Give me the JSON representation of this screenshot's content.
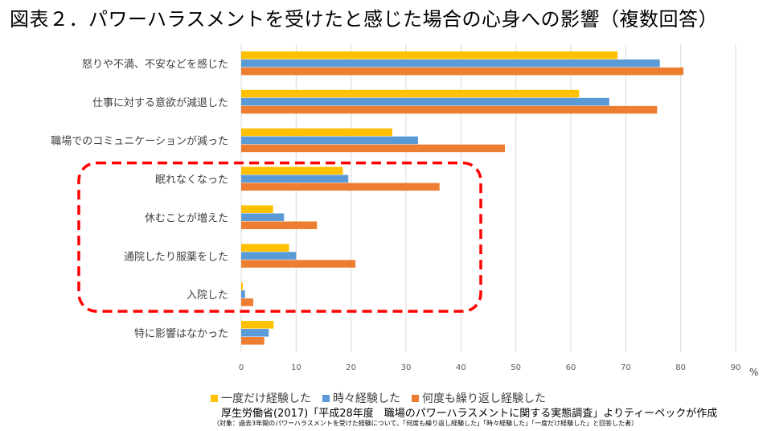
{
  "title": "図表２．パワーハラスメントを受けたと感じた場合の心身への影響（複数回答）",
  "unit": "%",
  "source": "厚生労働省(2017)「平成28年度　職場のパワーハラスメントに関する実態調査」よりティーペックが作成",
  "note": "（対象：過去3年間のパワーハラスメントを受けた経験について、「何度も繰り返し経験した」「時々経験した」「一度だけ経験した」と回答した者）",
  "chart_data": {
    "type": "bar",
    "orientation": "horizontal",
    "categories": [
      "怒りや不満、不安などを感じた",
      "仕事に対する意欲が減退した",
      "職場でのコミュニケーションが減った",
      "眠れなくなった",
      "休むことが増えた",
      "通院したり服薬をした",
      "入院した",
      "特に影響はなかった"
    ],
    "series": [
      {
        "name": "一度だけ経験した",
        "color": "#FFC000",
        "values": [
          68.5,
          61.5,
          27.5,
          18.5,
          5.8,
          8.7,
          0.3,
          5.9
        ]
      },
      {
        "name": "時々経験した",
        "color": "#5B9BD5",
        "values": [
          76.2,
          67.0,
          32.2,
          19.5,
          7.8,
          10.0,
          0.7,
          5.0
        ]
      },
      {
        "name": "何度も繰り返し経験した",
        "color": "#ED7D31",
        "values": [
          80.5,
          75.7,
          48.0,
          36.1,
          13.8,
          20.8,
          2.2,
          4.2
        ]
      }
    ],
    "xlim": [
      0,
      90
    ],
    "xticks": [
      0,
      10,
      20,
      30,
      40,
      50,
      60,
      70,
      80,
      90
    ],
    "grid": true,
    "legend": "bottom",
    "highlight": {
      "categories": [
        "眠れなくなった",
        "休むことが増えた",
        "通院したり服薬をした",
        "入院した"
      ],
      "color": "#FF0000",
      "style": "dashed"
    }
  }
}
